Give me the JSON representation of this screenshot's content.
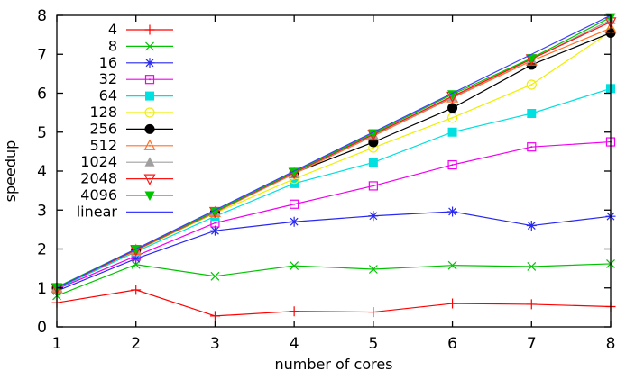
{
  "figure": {
    "background": "#ffffff",
    "border_color": "#000000",
    "text_color": "#000000"
  },
  "chart_data": {
    "type": "line",
    "title": "",
    "xlabel": "number of cores",
    "ylabel": "speedup",
    "x": [
      1,
      2,
      3,
      4,
      5,
      6,
      7,
      8
    ],
    "xlim": [
      1,
      8
    ],
    "ylim": [
      0,
      8
    ],
    "x_ticks": [
      1,
      2,
      3,
      4,
      5,
      6,
      7,
      8
    ],
    "y_ticks": [
      0,
      1,
      2,
      3,
      4,
      5,
      6,
      7,
      8
    ],
    "grid": false,
    "legend_position": "top-left-inside",
    "series": [
      {
        "name": "4",
        "color": "#ff0000",
        "marker": "plus",
        "values": [
          0.62,
          0.95,
          0.28,
          0.4,
          0.38,
          0.6,
          0.58,
          0.52
        ]
      },
      {
        "name": "8",
        "color": "#00c400",
        "marker": "cross",
        "values": [
          0.8,
          1.6,
          1.3,
          1.57,
          1.48,
          1.58,
          1.55,
          1.62
        ]
      },
      {
        "name": "16",
        "color": "#2828f0",
        "marker": "star",
        "values": [
          0.92,
          1.75,
          2.47,
          2.7,
          2.85,
          2.96,
          2.6,
          2.84
        ]
      },
      {
        "name": "32",
        "color": "#f000f0",
        "marker": "square-open",
        "values": [
          0.97,
          1.82,
          2.67,
          3.15,
          3.62,
          4.16,
          4.62,
          4.75
        ]
      },
      {
        "name": "64",
        "color": "#00e0e0",
        "marker": "square-filled",
        "values": [
          0.98,
          1.93,
          2.84,
          3.68,
          4.22,
          5.0,
          5.48,
          6.12
        ]
      },
      {
        "name": "128",
        "color": "#efef00",
        "marker": "circle-open",
        "values": [
          1.0,
          1.96,
          2.92,
          3.8,
          4.6,
          5.37,
          6.22,
          7.58
        ]
      },
      {
        "name": "256",
        "color": "#000000",
        "marker": "circle-filled",
        "values": [
          1.0,
          1.97,
          2.94,
          3.95,
          4.74,
          5.62,
          6.73,
          7.55
        ]
      },
      {
        "name": "512",
        "color": "#ff7028",
        "marker": "triangle-up-open",
        "values": [
          1.0,
          1.97,
          2.94,
          3.93,
          4.9,
          5.88,
          6.83,
          7.67
        ]
      },
      {
        "name": "1024",
        "color": "#a0a0a0",
        "marker": "triangle-up-filled",
        "values": [
          1.0,
          1.98,
          2.95,
          3.95,
          4.92,
          5.9,
          6.87,
          7.88
        ]
      },
      {
        "name": "2048",
        "color": "#ff1414",
        "marker": "triangle-down-open",
        "values": [
          1.0,
          1.98,
          2.96,
          3.96,
          4.94,
          5.92,
          6.88,
          7.83
        ]
      },
      {
        "name": "4096",
        "color": "#00c400",
        "marker": "triangle-down-filled",
        "values": [
          1.02,
          2.0,
          2.97,
          3.98,
          4.97,
          5.97,
          6.9,
          7.95
        ]
      },
      {
        "name": "linear",
        "color": "#3c3cff",
        "marker": "none",
        "values": [
          1,
          2,
          3,
          4,
          5,
          6,
          7,
          8
        ]
      }
    ]
  }
}
